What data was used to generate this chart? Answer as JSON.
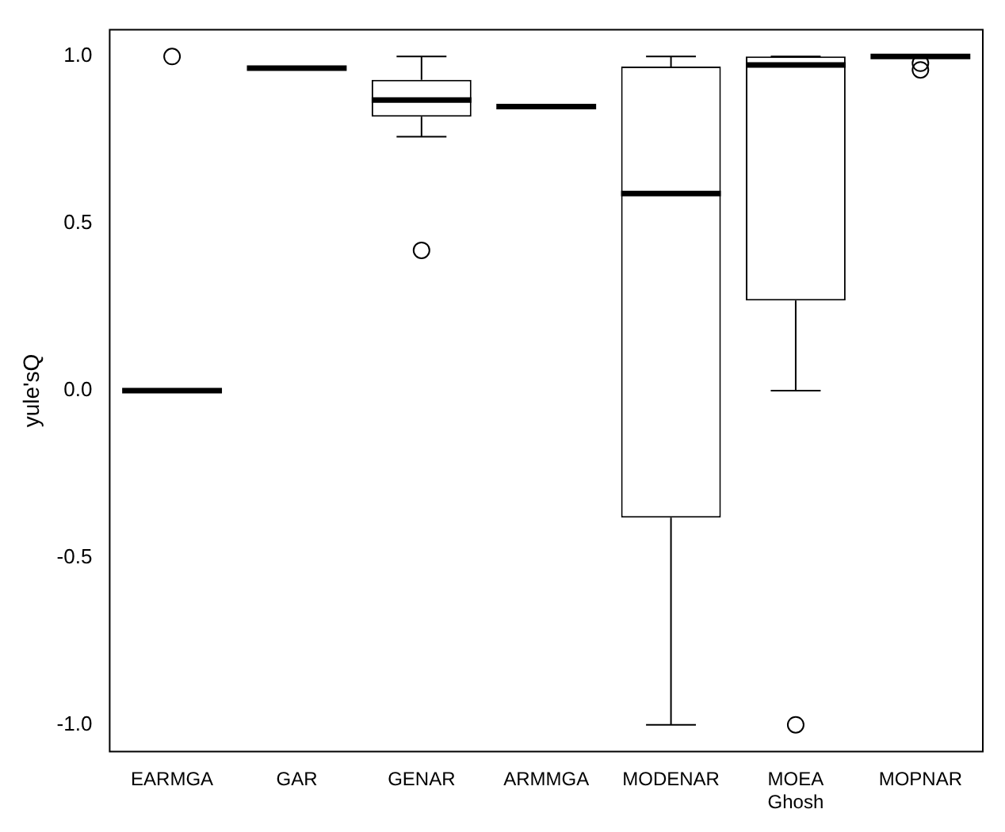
{
  "chart_data": {
    "type": "box",
    "ylabel": "yule'sQ",
    "categories": [
      "EARMGA",
      "GAR",
      "GENAR",
      "ARMMGA",
      "MODENAR",
      "MOEA Ghosh",
      "MOPNAR"
    ],
    "boxes": [
      {
        "low": 0,
        "q1": 0,
        "median": 0,
        "q3": 0,
        "high": 0,
        "outliers": [
          1.0
        ]
      },
      {
        "low": 0.965,
        "q1": 0.965,
        "median": 0.965,
        "q3": 0.965,
        "high": 0.965
      },
      {
        "low": 0.76,
        "q1": 0.82,
        "median": 0.87,
        "q3": 0.93,
        "high": 1.0,
        "outliers": [
          0.42
        ]
      },
      {
        "low": 0.85,
        "q1": 0.85,
        "median": 0.85,
        "q3": 0.85,
        "high": 0.85
      },
      {
        "low": -1.0,
        "q1": -0.38,
        "median": 0.59,
        "q3": 0.97,
        "high": 1.0
      },
      {
        "low": 0.0,
        "q1": 0.27,
        "median": 0.975,
        "q3": 1.0,
        "high": 1.0,
        "outliers": [
          -1.0
        ]
      },
      {
        "low": 1.0,
        "q1": 1.0,
        "median": 1.0,
        "q3": 1.0,
        "high": 1.0,
        "outliers": [
          0.98,
          0.96
        ]
      }
    ],
    "ylim": [
      -1.08,
      1.08
    ],
    "yticks": [
      {
        "value": -1,
        "label": "-1.0"
      },
      -0.5,
      {
        "value": 0,
        "label": "0.0"
      },
      0.5,
      {
        "value": 1,
        "label": "1.0"
      }
    ],
    "grid": false,
    "legend": false
  }
}
